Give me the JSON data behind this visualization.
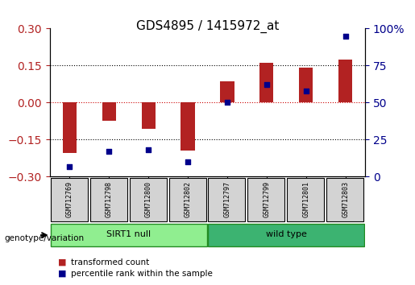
{
  "title": "GDS4895 / 1415972_at",
  "samples": [
    "GSM712769",
    "GSM712798",
    "GSM712800",
    "GSM712802",
    "GSM712797",
    "GSM712799",
    "GSM712801",
    "GSM712803"
  ],
  "transformed_count": [
    -0.205,
    -0.075,
    -0.105,
    -0.195,
    0.085,
    0.16,
    0.14,
    0.175
  ],
  "percentile_rank": [
    7,
    17,
    18,
    10,
    50,
    62,
    58,
    95
  ],
  "groups": [
    {
      "label": "SIRT1 null",
      "start": 0,
      "end": 4,
      "color": "#90EE90"
    },
    {
      "label": "wild type",
      "start": 4,
      "end": 8,
      "color": "#3CB371"
    }
  ],
  "ylim_left": [
    -0.3,
    0.3
  ],
  "ylim_right": [
    0,
    100
  ],
  "yticks_left": [
    -0.3,
    -0.15,
    0,
    0.15,
    0.3
  ],
  "yticks_right": [
    0,
    25,
    50,
    75,
    100
  ],
  "bar_color": "#B22222",
  "dot_color": "#00008B",
  "hline_color": "#CC0000",
  "grid_color": "#000000",
  "legend_tc": "transformed count",
  "legend_pr": "percentile rank within the sample",
  "genotype_label": "genotype/variation"
}
